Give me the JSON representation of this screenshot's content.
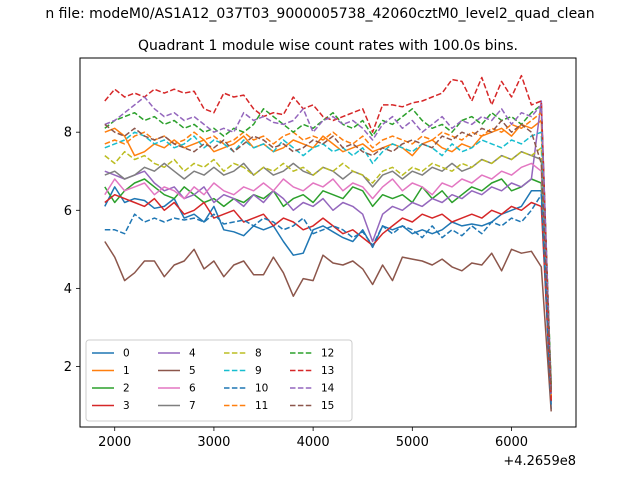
{
  "figure": {
    "suptitle": "n file: modeM0/AS1A12_037T03_9000005738_42060cztM0_level2_quad_clean",
    "title": "Quadrant 1 module wise count rates with 100.0s bins."
  },
  "chart_data": {
    "type": "line",
    "title": "Quadrant 1 module wise count rates with 100.0s bins.",
    "xlabel": "",
    "ylabel": "",
    "x_offset_label": "+4.2659e8",
    "xlim": [
      1650,
      6650
    ],
    "ylim": [
      0.45,
      9.9
    ],
    "xticks": [
      2000,
      3000,
      4000,
      5000,
      6000
    ],
    "yticks": [
      2,
      4,
      6,
      8
    ],
    "grid": false,
    "legend_placement": "lower-left",
    "legend_columns": 4,
    "x": [
      1900,
      2000,
      2100,
      2200,
      2300,
      2400,
      2500,
      2600,
      2700,
      2800,
      2900,
      3000,
      3100,
      3200,
      3300,
      3400,
      3500,
      3600,
      3700,
      3800,
      3900,
      4000,
      4100,
      4200,
      4300,
      4400,
      4500,
      4600,
      4700,
      4800,
      4900,
      5000,
      5100,
      5200,
      5300,
      5400,
      5500,
      5600,
      5700,
      5800,
      5900,
      6000,
      6100,
      6200,
      6300,
      6400
    ],
    "series": [
      {
        "name": "0",
        "color": "#1f77b4",
        "dash": "solid",
        "values": [
          6.1,
          6.6,
          6.2,
          6.3,
          6.25,
          6.05,
          6.1,
          6.3,
          5.8,
          5.9,
          5.7,
          6.1,
          5.5,
          5.45,
          5.35,
          5.6,
          5.5,
          5.6,
          5.2,
          4.85,
          4.9,
          5.5,
          5.6,
          5.45,
          5.3,
          5.2,
          5.5,
          5.05,
          5.6,
          5.5,
          5.6,
          5.4,
          5.5,
          5.4,
          5.5,
          5.7,
          5.6,
          5.65,
          5.6,
          5.7,
          5.9,
          6.0,
          6.1,
          6.5,
          6.5,
          0.9
        ]
      },
      {
        "name": "1",
        "color": "#ff7f0e",
        "dash": "solid",
        "values": [
          8.0,
          8.1,
          7.9,
          7.4,
          7.5,
          7.7,
          7.6,
          7.8,
          7.6,
          7.7,
          7.8,
          7.5,
          7.6,
          7.7,
          7.9,
          7.6,
          7.7,
          7.5,
          7.6,
          7.8,
          7.7,
          7.6,
          7.9,
          7.7,
          7.5,
          7.6,
          7.7,
          7.5,
          7.6,
          7.7,
          7.6,
          7.4,
          7.7,
          7.8,
          7.6,
          7.5,
          7.7,
          7.6,
          7.9,
          8.0,
          8.1,
          7.9,
          8.2,
          8.1,
          8.3,
          1.2
        ]
      },
      {
        "name": "2",
        "color": "#2ca02c",
        "dash": "solid",
        "values": [
          6.6,
          6.2,
          6.5,
          6.7,
          6.8,
          6.6,
          6.4,
          6.3,
          6.6,
          6.4,
          6.2,
          6.3,
          6.1,
          6.3,
          6.2,
          6.4,
          6.3,
          6.5,
          6.1,
          6.3,
          6.4,
          6.2,
          6.5,
          6.4,
          6.3,
          6.6,
          6.5,
          6.1,
          6.4,
          6.3,
          6.4,
          6.2,
          6.6,
          6.3,
          6.5,
          6.2,
          6.4,
          6.6,
          6.5,
          6.7,
          6.8,
          6.5,
          6.6,
          6.8,
          6.7,
          1.4
        ]
      },
      {
        "name": "3",
        "color": "#d62728",
        "dash": "solid",
        "values": [
          6.2,
          6.4,
          6.3,
          6.2,
          6.1,
          6.3,
          6.0,
          6.2,
          5.9,
          6.0,
          6.2,
          5.8,
          5.9,
          6.0,
          5.7,
          5.8,
          5.9,
          5.6,
          5.8,
          5.7,
          5.5,
          5.6,
          5.8,
          5.6,
          5.4,
          5.5,
          5.3,
          5.1,
          5.4,
          5.6,
          5.8,
          5.7,
          5.9,
          5.8,
          5.9,
          5.7,
          5.8,
          5.9,
          5.8,
          6.0,
          5.9,
          6.1,
          6.0,
          6.2,
          6.1,
          1.1
        ]
      },
      {
        "name": "4",
        "color": "#9467bd",
        "dash": "solid",
        "values": [
          7.0,
          6.9,
          6.8,
          6.9,
          7.0,
          6.7,
          6.5,
          6.6,
          6.3,
          6.4,
          6.6,
          6.2,
          6.4,
          6.3,
          6.1,
          6.4,
          6.2,
          6.5,
          6.3,
          6.0,
          6.2,
          6.1,
          6.3,
          6.0,
          6.2,
          6.1,
          5.9,
          5.2,
          5.9,
          6.1,
          6.0,
          6.2,
          6.1,
          6.3,
          6.2,
          6.4,
          6.3,
          6.5,
          6.4,
          6.6,
          6.5,
          6.7,
          6.6,
          6.8,
          8.8,
          1.3
        ]
      },
      {
        "name": "5",
        "color": "#8c564b",
        "dash": "solid",
        "values": [
          5.2,
          4.8,
          4.2,
          4.4,
          4.7,
          4.7,
          4.3,
          4.6,
          4.7,
          5.0,
          4.5,
          4.7,
          4.3,
          4.6,
          4.7,
          4.35,
          4.35,
          4.8,
          4.4,
          3.8,
          4.25,
          4.2,
          4.85,
          4.65,
          4.6,
          4.7,
          4.5,
          4.1,
          4.6,
          4.2,
          4.8,
          4.75,
          4.7,
          4.6,
          4.75,
          4.55,
          4.45,
          4.65,
          4.6,
          4.9,
          4.45,
          5.0,
          4.9,
          4.95,
          4.55,
          0.85
        ]
      },
      {
        "name": "6",
        "color": "#e377c2",
        "dash": "solid",
        "values": [
          6.4,
          6.8,
          6.5,
          6.6,
          6.7,
          6.4,
          6.6,
          6.5,
          6.3,
          6.6,
          6.4,
          6.7,
          6.5,
          6.4,
          6.6,
          6.5,
          6.7,
          6.5,
          6.8,
          6.6,
          6.5,
          6.7,
          6.6,
          6.8,
          6.5,
          6.7,
          6.6,
          6.3,
          6.6,
          6.8,
          6.5,
          6.7,
          6.6,
          6.4,
          6.7,
          6.6,
          6.8,
          6.7,
          6.9,
          6.8,
          7.0,
          6.9,
          7.1,
          7.2,
          7.0,
          1.5
        ]
      },
      {
        "name": "7",
        "color": "#7f7f7f",
        "dash": "solid",
        "values": [
          6.9,
          7.0,
          6.8,
          6.9,
          7.1,
          7.0,
          7.2,
          7.0,
          6.8,
          7.0,
          6.9,
          7.1,
          6.9,
          7.0,
          7.2,
          6.9,
          7.1,
          6.9,
          7.0,
          7.2,
          7.0,
          6.9,
          7.1,
          7.0,
          6.8,
          7.0,
          6.9,
          6.6,
          6.9,
          7.0,
          6.8,
          7.0,
          6.9,
          7.1,
          7.0,
          7.2,
          7.0,
          7.1,
          7.3,
          7.2,
          7.4,
          7.3,
          7.5,
          7.4,
          7.3,
          1.6
        ]
      },
      {
        "name": "8",
        "color": "#bcbd22",
        "dash": "dashed",
        "values": [
          7.4,
          7.2,
          7.5,
          7.3,
          7.4,
          7.2,
          7.1,
          7.3,
          7.0,
          7.2,
          7.1,
          7.3,
          7.0,
          7.2,
          7.1,
          6.9,
          7.1,
          7.0,
          7.2,
          7.0,
          7.1,
          6.9,
          7.1,
          7.0,
          7.2,
          7.0,
          6.9,
          6.7,
          7.0,
          7.1,
          6.9,
          7.1,
          7.0,
          7.2,
          7.1,
          7.0,
          7.2,
          7.1,
          7.3,
          7.2,
          7.4,
          7.3,
          7.5,
          7.4,
          7.6,
          1.4
        ]
      },
      {
        "name": "9",
        "color": "#17becf",
        "dash": "dashed",
        "values": [
          7.6,
          7.7,
          7.8,
          8.0,
          7.9,
          7.7,
          7.8,
          7.6,
          7.7,
          7.9,
          7.6,
          7.8,
          7.7,
          7.5,
          7.8,
          7.6,
          7.7,
          7.5,
          7.8,
          7.6,
          7.4,
          7.6,
          7.7,
          7.5,
          7.6,
          7.4,
          7.6,
          7.2,
          7.5,
          7.7,
          7.6,
          7.5,
          7.7,
          7.6,
          7.4,
          7.7,
          7.5,
          7.6,
          7.8,
          7.7,
          7.6,
          7.8,
          7.7,
          7.9,
          8.0,
          1.3
        ]
      },
      {
        "name": "10",
        "color": "#1f77b4",
        "dash": "dashed",
        "values": [
          5.5,
          5.5,
          5.4,
          5.9,
          5.7,
          5.8,
          5.7,
          5.8,
          5.75,
          5.8,
          5.7,
          5.9,
          5.65,
          5.7,
          5.75,
          5.6,
          5.8,
          5.7,
          5.5,
          5.6,
          5.8,
          5.4,
          5.5,
          5.6,
          5.5,
          5.3,
          5.45,
          5.1,
          5.6,
          5.4,
          5.6,
          5.5,
          5.3,
          5.6,
          5.3,
          5.5,
          5.35,
          5.6,
          5.4,
          5.7,
          5.6,
          5.8,
          5.7,
          6.0,
          6.4,
          1.0
        ]
      },
      {
        "name": "11",
        "color": "#ff7f0e",
        "dash": "dashed",
        "values": [
          7.7,
          7.8,
          7.7,
          7.9,
          8.0,
          7.8,
          7.9,
          7.7,
          7.8,
          8.0,
          7.8,
          7.9,
          7.7,
          7.8,
          8.0,
          7.8,
          7.9,
          7.7,
          7.9,
          8.0,
          7.8,
          7.9,
          7.8,
          8.0,
          7.8,
          7.7,
          7.9,
          7.6,
          7.8,
          7.9,
          7.8,
          7.7,
          7.9,
          7.8,
          8.0,
          7.9,
          7.8,
          8.0,
          7.9,
          8.1,
          8.0,
          8.2,
          8.1,
          8.3,
          8.5,
          1.2
        ]
      },
      {
        "name": "12",
        "color": "#2ca02c",
        "dash": "dashed",
        "values": [
          8.1,
          8.3,
          8.4,
          8.5,
          8.3,
          8.4,
          8.2,
          8.3,
          8.1,
          8.2,
          8.0,
          8.1,
          7.9,
          8.1,
          8.0,
          8.2,
          8.6,
          8.4,
          8.2,
          8.0,
          8.2,
          8.1,
          8.3,
          8.5,
          8.2,
          8.1,
          8.3,
          7.9,
          8.3,
          8.2,
          8.4,
          8.6,
          8.3,
          8.1,
          8.2,
          8.0,
          8.3,
          8.4,
          8.2,
          8.5,
          8.3,
          8.4,
          8.2,
          8.5,
          8.7,
          1.5
        ]
      },
      {
        "name": "13",
        "color": "#d62728",
        "dash": "dashed",
        "values": [
          8.8,
          9.1,
          8.9,
          9.0,
          8.9,
          9.1,
          9.0,
          9.1,
          9.0,
          9.05,
          8.6,
          8.5,
          9.0,
          8.9,
          8.95,
          8.6,
          8.4,
          8.5,
          8.45,
          8.9,
          8.6,
          8.7,
          8.4,
          8.3,
          8.4,
          8.5,
          8.6,
          8.0,
          8.7,
          8.7,
          8.65,
          8.75,
          8.8,
          8.9,
          9.0,
          9.35,
          9.3,
          8.8,
          9.4,
          8.7,
          9.3,
          8.9,
          9.45,
          8.7,
          8.8,
          1.1
        ]
      },
      {
        "name": "14",
        "color": "#9467bd",
        "dash": "dashed",
        "values": [
          8.2,
          8.3,
          8.5,
          8.7,
          8.9,
          8.6,
          8.4,
          8.5,
          8.3,
          8.4,
          8.2,
          8.0,
          8.1,
          8.0,
          8.5,
          8.3,
          8.4,
          8.25,
          8.2,
          8.3,
          8.6,
          8.0,
          8.3,
          8.4,
          8.2,
          8.3,
          8.1,
          7.8,
          8.2,
          8.4,
          8.1,
          8.3,
          8.0,
          8.2,
          8.4,
          8.1,
          8.3,
          8.2,
          8.4,
          8.3,
          8.6,
          8.2,
          8.5,
          8.4,
          8.7,
          1.3
        ]
      },
      {
        "name": "15",
        "color": "#8c564b",
        "dash": "dashed",
        "values": [
          8.2,
          8.0,
          7.9,
          8.1,
          7.9,
          7.8,
          7.9,
          7.7,
          7.6,
          7.5,
          7.7,
          7.6,
          7.8,
          7.5,
          7.7,
          7.9,
          7.8,
          7.6,
          7.7,
          7.5,
          7.6,
          7.8,
          7.7,
          7.9,
          7.6,
          7.7,
          7.5,
          7.4,
          7.6,
          7.5,
          7.7,
          7.8,
          7.7,
          7.6,
          7.9,
          7.8,
          8.0,
          7.9,
          8.1,
          8.0,
          8.3,
          8.0,
          8.2,
          8.0,
          7.2,
          1.4
        ]
      }
    ]
  }
}
